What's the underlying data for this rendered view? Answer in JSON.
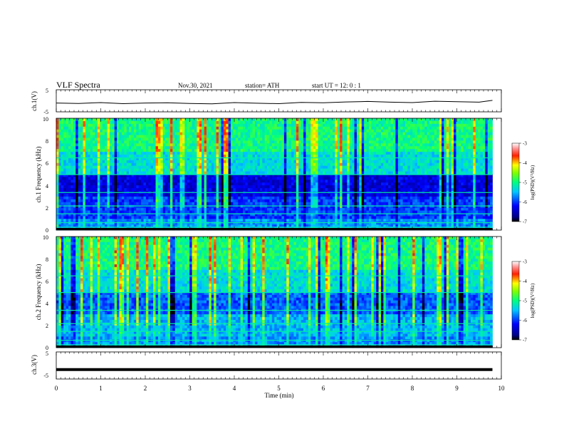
{
  "header": {
    "title": "VLF Spectra",
    "date": "Nov.30, 2021",
    "station": "station= ATH",
    "start": "start  UT  =    12: 0   : 1"
  },
  "colorbar": {
    "label": "log(PSD)(V²/Hz)",
    "ticks": [
      "-3",
      "-4",
      "-5",
      "-6",
      "-7"
    ],
    "range": [
      -7,
      -3
    ]
  },
  "chart_data": [
    {
      "type": "line",
      "name": "ch1-waveform",
      "ylabel": "ch.1(V)",
      "ylim": [
        -5,
        5
      ],
      "yticks": [
        5,
        -5
      ],
      "x": [
        0,
        0.5,
        1,
        1.5,
        2,
        2.5,
        3,
        3.5,
        4,
        4.5,
        5,
        5.5,
        6,
        6.5,
        7,
        7.5,
        8,
        8.5,
        9,
        9.5,
        9.8
      ],
      "y": [
        -1.0,
        -1.2,
        -0.8,
        -1.3,
        -1.0,
        -0.9,
        -1.2,
        -1.4,
        -0.8,
        -1.1,
        -1.3,
        -0.7,
        -0.9,
        -0.5,
        -0.3,
        -0.6,
        -0.8,
        -0.2,
        -0.4,
        -0.6,
        0.2
      ]
    },
    {
      "type": "heatmap",
      "name": "ch1-spectrogram",
      "ylabel": "ch.1 Frequency  (kHz)",
      "xlim": [
        0,
        10
      ],
      "ylim": [
        0,
        10
      ],
      "yticks": [
        0,
        2,
        4,
        6,
        8,
        10
      ],
      "data_xmax": 9.8
    },
    {
      "type": "heatmap",
      "name": "ch2-spectrogram",
      "ylabel": "ch.2 Frequency  (kHz)",
      "xlim": [
        0,
        10
      ],
      "ylim": [
        0,
        10
      ],
      "yticks": [
        0,
        2,
        4,
        6,
        8,
        10
      ],
      "data_xmax": 9.8
    },
    {
      "type": "line",
      "name": "ch3-waveform",
      "ylabel": "ch.3(V)",
      "ylim": [
        -5,
        5
      ],
      "yticks": [
        5,
        -5
      ],
      "x": [
        0,
        9.8
      ],
      "y": [
        -1.5,
        -1.5
      ]
    }
  ],
  "xaxis": {
    "label": "Time  (min)",
    "ticks": [
      "0",
      "1",
      "2",
      "3",
      "4",
      "5",
      "6",
      "7",
      "8",
      "9",
      "10"
    ]
  }
}
